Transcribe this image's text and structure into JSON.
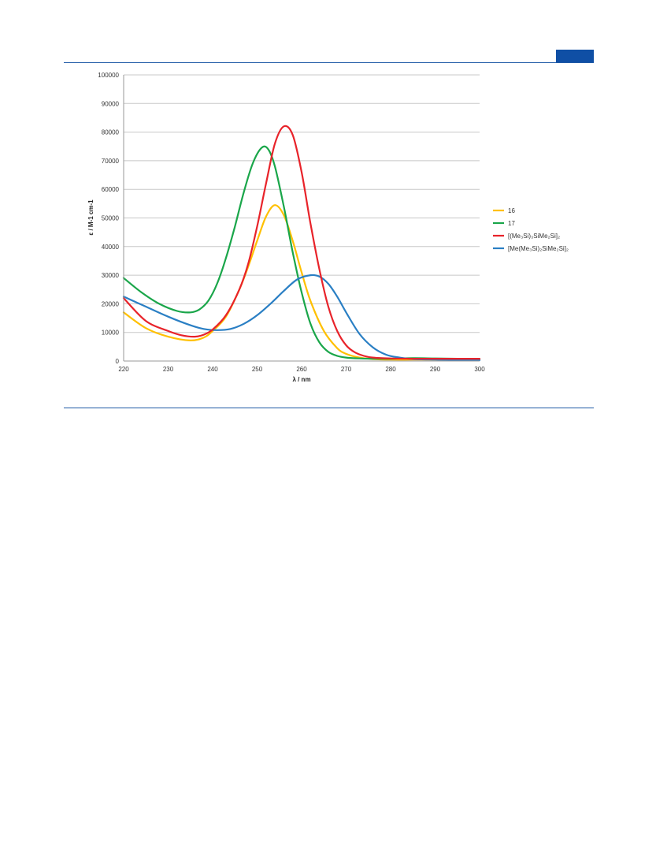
{
  "page": {
    "header_tab_color": "#0f4fa5",
    "rule_color": "#1f5aa6"
  },
  "chart_data": {
    "type": "line",
    "xlabel": "λ / nm",
    "ylabel": "ε / M-1 cm-1",
    "xlim": [
      220,
      300
    ],
    "ylim": [
      0,
      100000
    ],
    "x_ticks": [
      "220",
      "230",
      "240",
      "250",
      "260",
      "270",
      "280",
      "290",
      "300"
    ],
    "y_ticks": [
      "0",
      "10000",
      "20000",
      "30000",
      "40000",
      "50000",
      "60000",
      "70000",
      "80000",
      "90000",
      "100000"
    ],
    "grid": "horizontal",
    "legend_position": "right",
    "series": [
      {
        "name": "16",
        "color": "#ffc000",
        "x": [
          220,
          225,
          230,
          235,
          238,
          240,
          243,
          246,
          248,
          250,
          252,
          254,
          256,
          258,
          260,
          262,
          265,
          268,
          270,
          273,
          276,
          280,
          285,
          290,
          295,
          300
        ],
        "y": [
          17000,
          11500,
          8500,
          7200,
          8200,
          10500,
          15500,
          25000,
          33000,
          42000,
          50500,
          54500,
          51000,
          42000,
          31000,
          21000,
          10500,
          4500,
          2500,
          1200,
          700,
          500,
          500,
          500,
          500,
          500
        ]
      },
      {
        "name": "17",
        "color": "#1aa64a",
        "x": [
          220,
          224,
          228,
          232,
          235,
          237,
          239,
          241,
          243,
          245,
          247,
          249,
          251,
          252.5,
          254,
          256,
          258,
          260,
          262,
          264,
          266,
          268,
          270,
          273,
          276,
          280,
          285,
          290,
          295,
          300
        ],
        "y": [
          29000,
          24000,
          20000,
          17500,
          17000,
          18000,
          21000,
          27000,
          36000,
          47000,
          59000,
          69000,
          74500,
          74000,
          68000,
          54000,
          38000,
          24000,
          13000,
          6500,
          3200,
          1800,
          1200,
          900,
          800,
          800,
          1000,
          900,
          800,
          700
        ]
      },
      {
        "name": "[(Me₃Si)₃SiMe₂Si]₂",
        "color": "#e8232a",
        "x": [
          220,
          225,
          230,
          233,
          236,
          238,
          240,
          243,
          246,
          248,
          250,
          252,
          254,
          256,
          258,
          260,
          262,
          264,
          266,
          268,
          270,
          272,
          274,
          276,
          280,
          285,
          290,
          295,
          300
        ],
        "y": [
          22000,
          14000,
          10500,
          9000,
          8500,
          9200,
          11000,
          16000,
          25000,
          34000,
          47000,
          62000,
          76000,
          82000,
          79000,
          66000,
          48000,
          32000,
          19000,
          10500,
          5500,
          3000,
          1800,
          1200,
          900,
          800,
          800,
          800,
          800
        ]
      },
      {
        "name": "[Me(Me₃Si)₂SiMe₂Si]₂",
        "color": "#2a7fc4",
        "x": [
          220,
          225,
          230,
          235,
          238,
          241,
          244,
          247,
          250,
          253,
          256,
          259,
          262,
          264,
          266,
          268,
          270,
          273,
          276,
          279,
          282,
          285,
          290,
          295,
          300
        ],
        "y": [
          22500,
          19000,
          15500,
          12500,
          11200,
          10800,
          11200,
          13000,
          16000,
          20000,
          24500,
          28500,
          30000,
          29500,
          27000,
          22500,
          17000,
          9500,
          4800,
          2200,
          1200,
          700,
          500,
          400,
          300
        ]
      }
    ]
  }
}
